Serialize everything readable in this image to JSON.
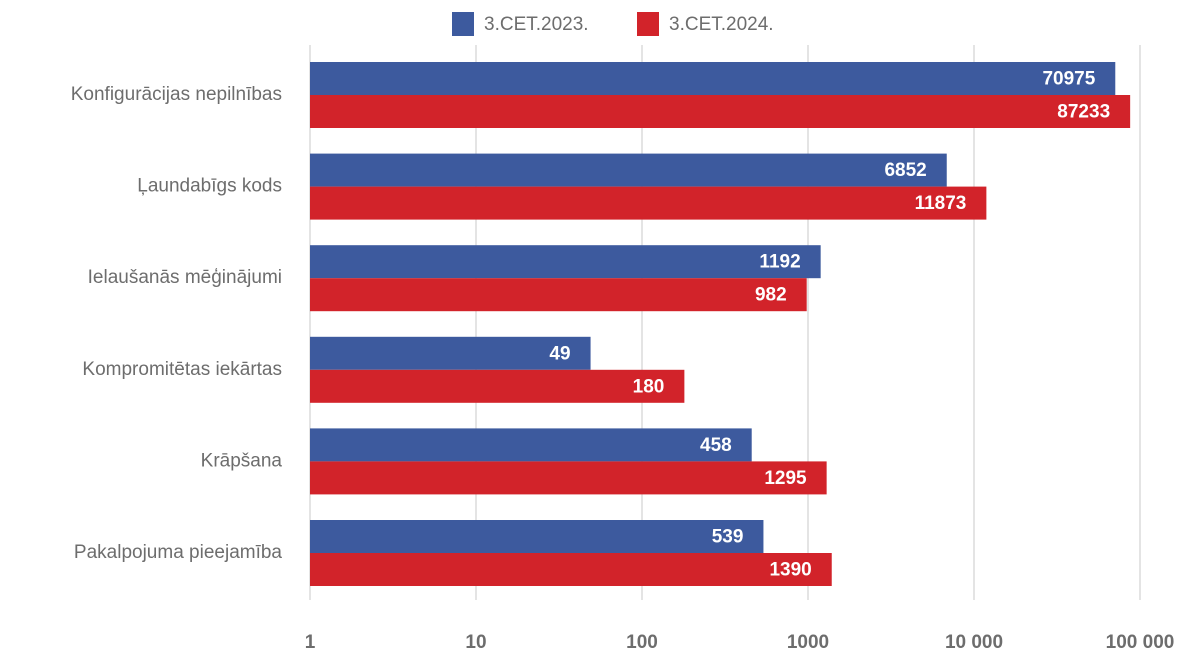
{
  "chart_data": {
    "type": "bar",
    "orientation": "horizontal",
    "x_scale": "log",
    "categories": [
      "Konfigurācijas nepilnības",
      "Ļaundabīgs kods",
      "Ielaušanās mēģinājumi",
      "Kompromitētas iekārtas",
      "Krāpšana",
      "Pakalpojuma pieejamība"
    ],
    "series": [
      {
        "name": "3.CET.2023.",
        "color": "#3d5a9e",
        "values": [
          70975,
          6852,
          1192,
          49,
          458,
          539
        ]
      },
      {
        "name": "3.CET.2024.",
        "color": "#d2232a",
        "values": [
          87233,
          11873,
          982,
          180,
          1295,
          1390
        ]
      }
    ],
    "xlim": [
      1,
      100000
    ],
    "xticks": [
      1,
      10,
      100,
      1000,
      {
        "value": 10000,
        "label": "10 000"
      },
      {
        "value": 100000,
        "label": "100 000"
      }
    ],
    "grid": true,
    "legend": "top"
  }
}
